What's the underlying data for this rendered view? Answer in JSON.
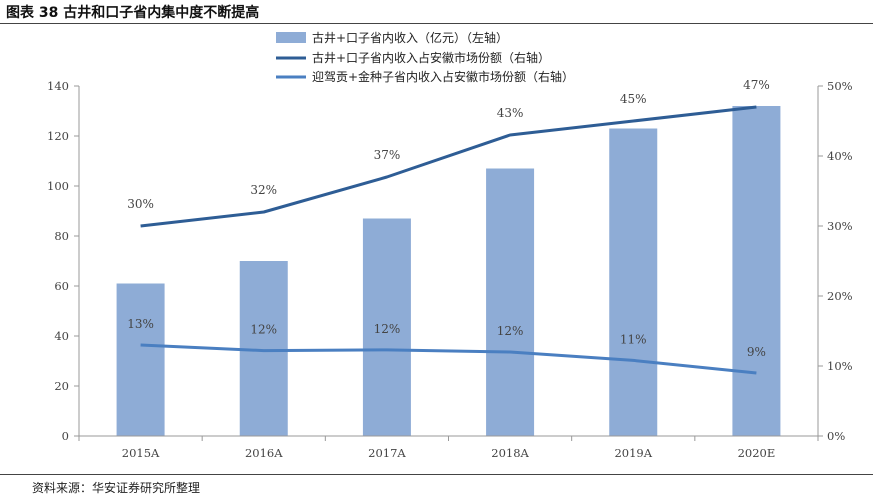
{
  "figure": {
    "title": "图表 38 古井和口子省内集中度不断提高",
    "source": "资料来源：华安证券研究所整理"
  },
  "chart_data": {
    "type": "bar",
    "categories": [
      "2015A",
      "2016A",
      "2017A",
      "2018A",
      "2019A",
      "2020E"
    ],
    "series": [
      {
        "name": "古井+口子省内收入（亿元）（左轴）",
        "kind": "bar",
        "axis": "left",
        "color": "#8EACD6",
        "values": [
          61,
          70,
          87,
          107,
          123,
          132
        ]
      },
      {
        "name": "古井+口子省内收入占安徽市场份额（右轴）",
        "kind": "line",
        "axis": "right",
        "color": "#2E5D95",
        "values": [
          30,
          32,
          37,
          43,
          45,
          47
        ],
        "labels": [
          "30%",
          "32%",
          "37%",
          "43%",
          "45%",
          "47%"
        ]
      },
      {
        "name": "迎驾贡+金种子省内收入占安徽市场份额（右轴）",
        "kind": "line",
        "axis": "right",
        "color": "#4A7FC1",
        "values": [
          13,
          12.2,
          12.3,
          12,
          10.8,
          9
        ],
        "labels": [
          "13%",
          "12%",
          "12%",
          "12%",
          "11%",
          "9%"
        ]
      }
    ],
    "left_axis": {
      "ylim": [
        0,
        140
      ],
      "ticks": [
        "0",
        "20",
        "40",
        "60",
        "80",
        "100",
        "120",
        "140"
      ],
      "tick_values": [
        0,
        20,
        40,
        60,
        80,
        100,
        120,
        140
      ]
    },
    "right_axis": {
      "ylim": [
        0,
        50
      ],
      "ticks": [
        "0%",
        "10%",
        "20%",
        "30%",
        "40%",
        "50%"
      ],
      "tick_values": [
        0,
        10,
        20,
        30,
        40,
        50
      ]
    },
    "legend_position": "top-center",
    "grid": false
  }
}
